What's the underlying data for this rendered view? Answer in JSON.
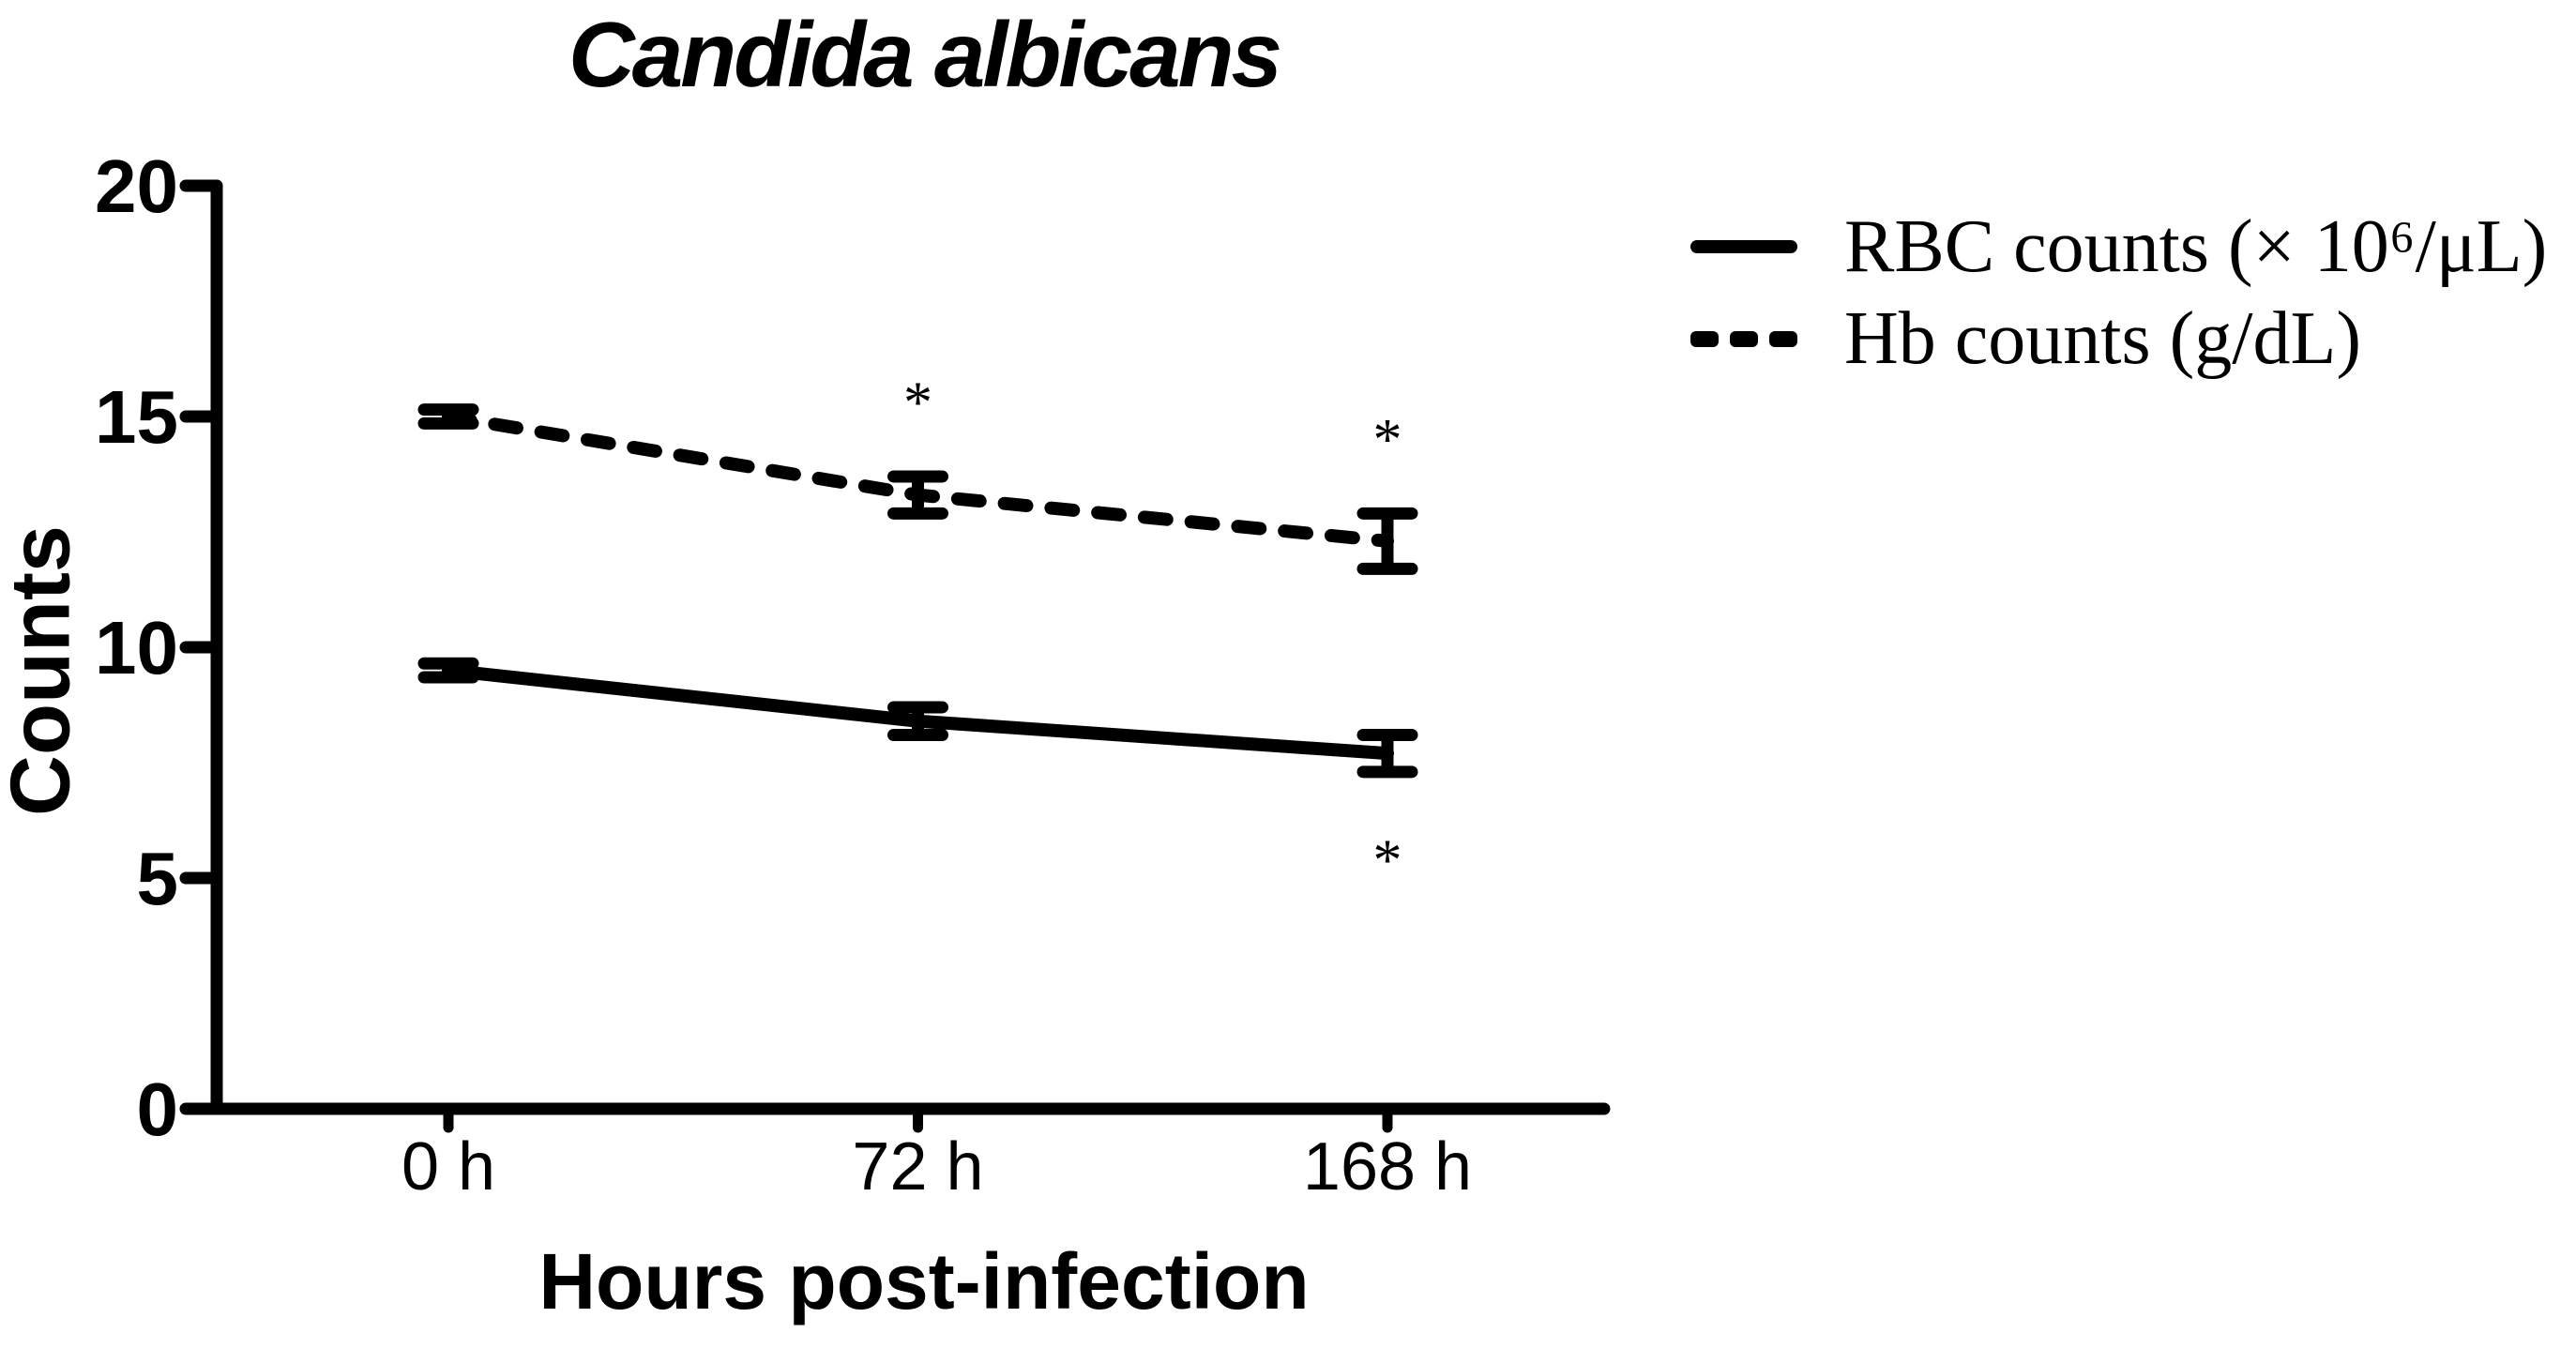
{
  "page": {
    "background_color": "#ffffff",
    "ink_color": "#000000"
  },
  "chart_data": {
    "type": "line",
    "title": "Candida albicans",
    "xlabel": "Hours post-infection",
    "ylabel": "Counts",
    "categories": [
      "0 h",
      "72 h",
      "168 h"
    ],
    "yticks": [
      0,
      5,
      10,
      15,
      20
    ],
    "ylim": [
      0,
      20
    ],
    "grid": false,
    "legend_position": "upper right",
    "series": [
      {
        "name": "RBC counts (× 10⁶/μL)",
        "line_style": "solid",
        "marker": "error-bar-caps",
        "values": [
          9.5,
          8.4,
          7.7
        ],
        "error": [
          0.15,
          0.3,
          0.4
        ]
      },
      {
        "name": "Hb counts (g/dL)",
        "line_style": "dashed",
        "marker": "error-bar-caps",
        "values": [
          15.0,
          13.3,
          12.3
        ],
        "error": [
          0.15,
          0.4,
          0.6
        ]
      }
    ],
    "annotations": [
      {
        "text": "*",
        "series_index": 1,
        "point_index": 1,
        "position": "above"
      },
      {
        "text": "*",
        "series_index": 1,
        "point_index": 2,
        "position": "above"
      },
      {
        "text": "*",
        "series_index": 0,
        "point_index": 2,
        "position": "below"
      }
    ]
  }
}
